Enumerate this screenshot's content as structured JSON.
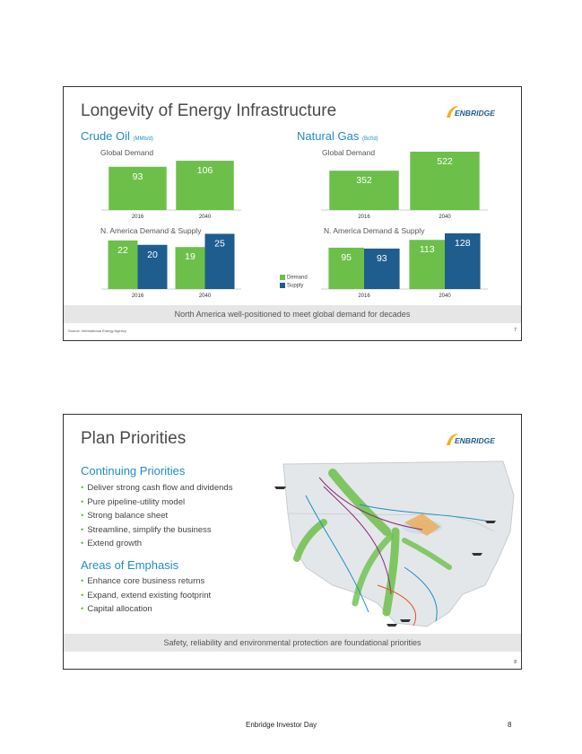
{
  "slide1": {
    "title": "Longevity of Energy Infrastructure",
    "logo_text": "ENBRIDGE",
    "crude_label": "Crude Oil",
    "crude_unit": "(MMb/d)",
    "gas_label": "Natural Gas",
    "gas_unit": "(Bcf/d)",
    "global_demand_label": "Global Demand",
    "na_label": "N. America Demand & Supply",
    "legend_demand": "Demand",
    "legend_supply": "Supply",
    "footer": "North America well-positioned to meet global demand for decades",
    "source": "Source: International Energy Agency",
    "page_num": "7"
  },
  "chart_data": [
    {
      "type": "bar",
      "title": "Crude Oil Global Demand",
      "categories": [
        "2016",
        "2040"
      ],
      "values": [
        93,
        106
      ],
      "color": "#6cc04a"
    },
    {
      "type": "bar",
      "title": "Natural Gas Global Demand",
      "categories": [
        "2016",
        "2040"
      ],
      "values": [
        352,
        522
      ],
      "color": "#6cc04a"
    },
    {
      "type": "bar",
      "title": "Crude Oil N. America Demand & Supply",
      "categories": [
        "2016",
        "2040"
      ],
      "series": [
        {
          "name": "Demand",
          "values": [
            22,
            19
          ],
          "color": "#6cc04a"
        },
        {
          "name": "Supply",
          "values": [
            20,
            25
          ],
          "color": "#1f5d8f"
        }
      ]
    },
    {
      "type": "bar",
      "title": "Natural Gas N. America Demand & Supply",
      "categories": [
        "2016",
        "2040"
      ],
      "series": [
        {
          "name": "Demand",
          "values": [
            95,
            113
          ],
          "color": "#6cc04a"
        },
        {
          "name": "Supply",
          "values": [
            93,
            128
          ],
          "color": "#1f5d8f"
        }
      ]
    }
  ],
  "slide2": {
    "title": "Plan Priorities",
    "logo_text": "ENBRIDGE",
    "continuing_heading": "Continuing Priorities",
    "continuing_items": [
      "Deliver strong cash flow and dividends",
      "Pure pipeline-utility model",
      "Strong balance sheet",
      "Streamline, simplify the business",
      "Extend growth"
    ],
    "emphasis_heading": "Areas of Emphasis",
    "emphasis_items": [
      "Enhance core business returns",
      "Expand, extend existing footprint",
      "Capital allocation"
    ],
    "footer": "Safety, reliability and environmental protection are foundational priorities",
    "page_num": "8"
  },
  "page_footer": {
    "text": "Enbridge Investor Day",
    "page": "8"
  },
  "colors": {
    "green": "#6cc04a",
    "blue": "#1f5d8f",
    "accent": "#1f8dc6"
  }
}
